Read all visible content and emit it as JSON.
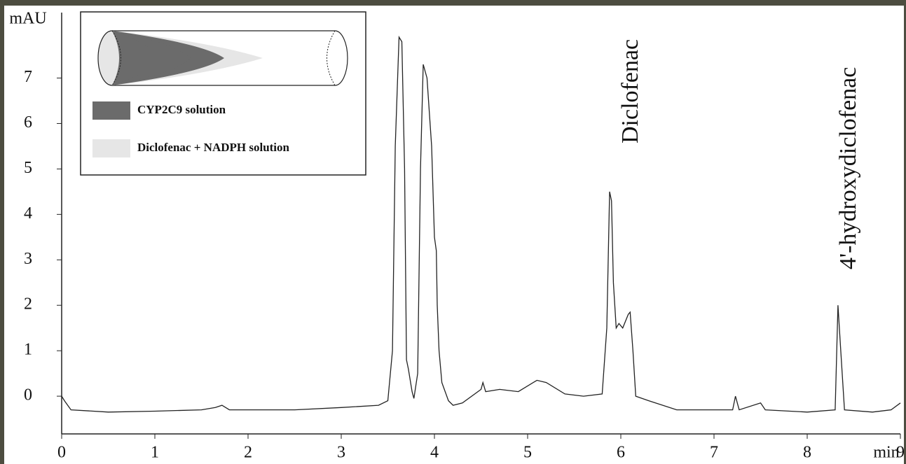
{
  "chart_data": {
    "type": "line",
    "x_label": "min",
    "y_label": "mAU",
    "xlim": [
      0,
      9
    ],
    "ylim": [
      -0.83,
      8.44
    ],
    "xticks": [
      0,
      1,
      2,
      3,
      4,
      5,
      6,
      7,
      8,
      9
    ],
    "yticks": [
      0,
      1,
      2,
      3,
      4,
      5,
      6,
      7
    ],
    "annotations": [
      "Diclofenac",
      "4'-hydroxydiclofenac"
    ],
    "inset_legend": [
      {
        "label": "CYP2C9 solution",
        "color": "#6b6b6b"
      },
      {
        "label": "Diclofenac + NADPH solution",
        "color": "#e6e6e6"
      }
    ],
    "series": [
      {
        "color": "#222222",
        "x": [
          0,
          0.03,
          0.1,
          0.5,
          1.0,
          1.5,
          1.65,
          1.72,
          1.8,
          2.5,
          3.0,
          3.4,
          3.5,
          3.55,
          3.58,
          3.62,
          3.65,
          3.68,
          3.7,
          3.72,
          3.76,
          3.78,
          3.82,
          3.85,
          3.88,
          3.92,
          3.97,
          4.0,
          4.02,
          4.03,
          4.05,
          4.08,
          4.15,
          4.2,
          4.3,
          4.5,
          4.52,
          4.55,
          4.7,
          4.9,
          5.1,
          5.2,
          5.4,
          5.6,
          5.8,
          5.85,
          5.88,
          5.9,
          5.92,
          5.95,
          5.98,
          6.02,
          6.08,
          6.1,
          6.13,
          6.16,
          6.3,
          6.6,
          7.0,
          7.2,
          7.23,
          7.27,
          7.5,
          7.55,
          8.0,
          8.3,
          8.33,
          8.36,
          8.4,
          8.7,
          8.9,
          9.0
        ],
        "values": [
          0.0,
          -0.1,
          -0.3,
          -0.35,
          -0.33,
          -0.3,
          -0.25,
          -0.2,
          -0.3,
          -0.3,
          -0.25,
          -0.2,
          -0.1,
          1.0,
          5.5,
          7.9,
          7.8,
          5.0,
          0.8,
          0.6,
          0.1,
          -0.05,
          0.5,
          5.0,
          7.3,
          7.0,
          5.5,
          3.5,
          3.2,
          2.0,
          1.0,
          0.3,
          -0.1,
          -0.2,
          -0.15,
          0.15,
          0.3,
          0.1,
          0.15,
          0.1,
          0.35,
          0.3,
          0.05,
          0.0,
          0.05,
          1.5,
          4.5,
          4.3,
          2.5,
          1.5,
          1.6,
          1.5,
          1.8,
          1.85,
          1.0,
          0.0,
          -0.1,
          -0.3,
          -0.3,
          -0.3,
          0.0,
          -0.3,
          -0.15,
          -0.3,
          -0.35,
          -0.3,
          2.0,
          1.0,
          -0.3,
          -0.35,
          -0.3,
          -0.15
        ]
      }
    ]
  }
}
